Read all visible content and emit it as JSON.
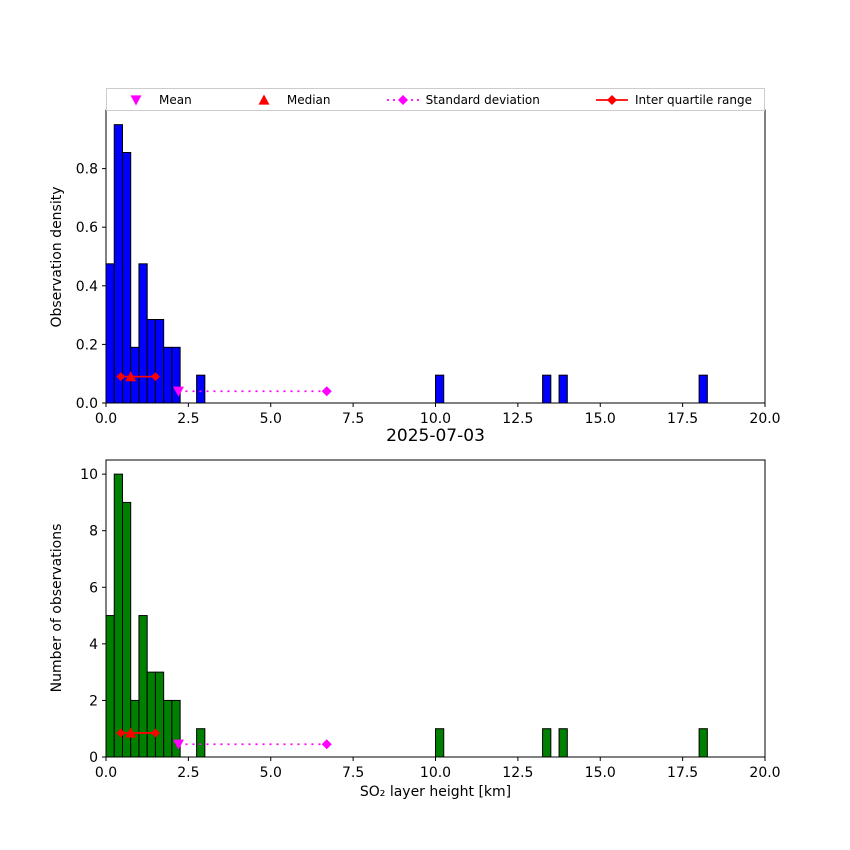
{
  "figure": {
    "title": "2025-07-03"
  },
  "colors": {
    "top_bar": "#0000ff",
    "bottom_bar": "#008000",
    "bar_edge": "#000000",
    "mean": "#ff00ff",
    "median": "#ff0000",
    "std": "#ff00ff",
    "iqr": "#ff0000",
    "axis": "#000000",
    "legend_border": "#cccccc"
  },
  "legend": {
    "items": [
      {
        "label": "Mean",
        "marker": "triangle-down",
        "color": "#ff00ff",
        "line": "none"
      },
      {
        "label": "Median",
        "marker": "triangle-up",
        "color": "#ff0000",
        "line": "none"
      },
      {
        "label": "Standard deviation",
        "marker": "diamond",
        "color": "#ff00ff",
        "line": "dotted"
      },
      {
        "label": "Inter quartile range",
        "marker": "diamond",
        "color": "#ff0000",
        "line": "solid"
      }
    ]
  },
  "chart_data": [
    {
      "type": "bar",
      "name": "observation-density-histogram",
      "title": "",
      "ylabel": "Observation density",
      "xlabel": "",
      "xlim": [
        0,
        20
      ],
      "ylim": [
        0,
        1.0
      ],
      "xtick_values": [
        0,
        2.5,
        5,
        7.5,
        10,
        12.5,
        15,
        17.5,
        20
      ],
      "xtick_labels": [
        "0.0",
        "2.5",
        "5.0",
        "7.5",
        "10.0",
        "12.5",
        "15.0",
        "17.5",
        "20.0"
      ],
      "ytick_values": [
        0,
        0.2,
        0.4,
        0.6,
        0.8
      ],
      "ytick_labels": [
        "0.0",
        "0.2",
        "0.4",
        "0.6",
        "0.8"
      ],
      "bar_color": "#0000ff",
      "bin_width": 0.25,
      "bin_starts": [
        0.0,
        0.25,
        0.5,
        0.75,
        1.0,
        1.25,
        1.5,
        1.75,
        2.0,
        2.75,
        10.0,
        13.25,
        13.75,
        18.0
      ],
      "values": [
        0.475,
        0.95,
        0.855,
        0.19,
        0.475,
        0.285,
        0.285,
        0.19,
        0.19,
        0.095,
        0.095,
        0.095,
        0.095,
        0.095
      ],
      "markers": {
        "mean": {
          "x": 2.2,
          "y": 0.04
        },
        "median": {
          "x": 0.75,
          "y": 0.09
        },
        "iqr": {
          "x_start": 0.45,
          "x_end": 1.5,
          "y": 0.09
        },
        "std": {
          "x_start": 2.2,
          "x_end": 6.7,
          "y": 0.04
        }
      }
    },
    {
      "type": "bar",
      "name": "observation-count-histogram",
      "title": "2025-07-03",
      "ylabel": "Number of observations",
      "xlabel": "SO₂ layer height [km]",
      "xlim": [
        0,
        20
      ],
      "ylim": [
        0,
        10.5
      ],
      "xtick_values": [
        0,
        2.5,
        5,
        7.5,
        10,
        12.5,
        15,
        17.5,
        20
      ],
      "xtick_labels": [
        "0.0",
        "2.5",
        "5.0",
        "7.5",
        "10.0",
        "12.5",
        "15.0",
        "17.5",
        "20.0"
      ],
      "ytick_values": [
        0,
        2,
        4,
        6,
        8,
        10
      ],
      "ytick_labels": [
        "0",
        "2",
        "4",
        "6",
        "8",
        "10"
      ],
      "bar_color": "#008000",
      "bin_width": 0.25,
      "bin_starts": [
        0.0,
        0.25,
        0.5,
        0.75,
        1.0,
        1.25,
        1.5,
        1.75,
        2.0,
        2.75,
        10.0,
        13.25,
        13.75,
        18.0
      ],
      "values": [
        5,
        10,
        9,
        2,
        5,
        3,
        3,
        2,
        2,
        1,
        1,
        1,
        1,
        1
      ],
      "markers": {
        "mean": {
          "x": 2.2,
          "y": 0.45
        },
        "median": {
          "x": 0.75,
          "y": 0.85
        },
        "iqr": {
          "x_start": 0.45,
          "x_end": 1.5,
          "y": 0.85
        },
        "std": {
          "x_start": 2.2,
          "x_end": 6.7,
          "y": 0.45
        }
      }
    }
  ]
}
